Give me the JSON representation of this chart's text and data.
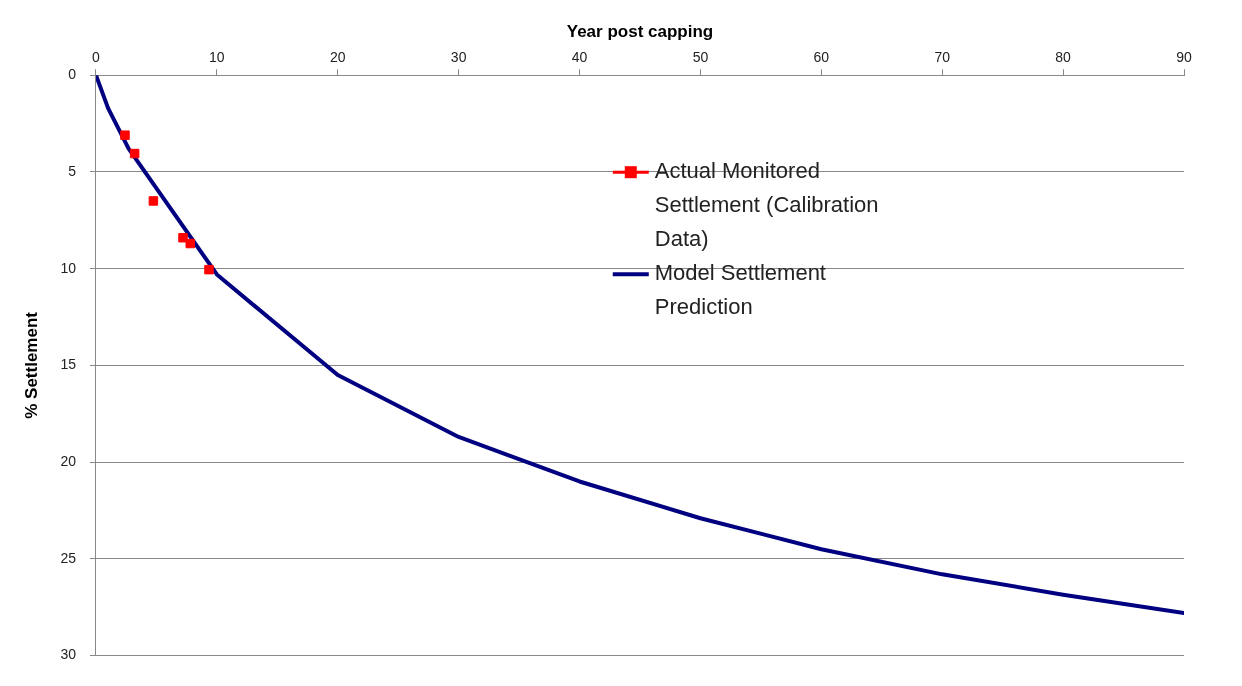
{
  "chart_data": {
    "type": "line",
    "xlabel": "Year post capping",
    "ylabel": "% Settlement",
    "xlim": [
      0,
      90
    ],
    "xticks": [
      0,
      10,
      20,
      30,
      40,
      50,
      60,
      70,
      80,
      90
    ],
    "ylim": [
      30,
      0
    ],
    "yticks": [
      0,
      5,
      10,
      15,
      20,
      25,
      30
    ],
    "grid": "y",
    "legend": "top right",
    "series": [
      {
        "name": "Actual Monitored Settlement (Calibration Data)",
        "type": "scatter",
        "marker": "square",
        "color": "#ff0000",
        "x": [
          2.4,
          3.2,
          4.75,
          7.2,
          7.8,
          9.35
        ],
        "values": [
          3.1,
          4.05,
          6.5,
          8.4,
          8.7,
          10.05
        ]
      },
      {
        "name": "Model Settlement Prediction",
        "type": "line",
        "marker": "none",
        "color": "#000080",
        "x": [
          0,
          1,
          2.7,
          10,
          20,
          30,
          40,
          50,
          60,
          70,
          80,
          90
        ],
        "values": [
          0,
          1.7,
          3.8,
          10.3,
          15.5,
          18.7,
          21,
          22.9,
          24.5,
          25.8,
          26.85,
          27.8
        ]
      }
    ]
  }
}
